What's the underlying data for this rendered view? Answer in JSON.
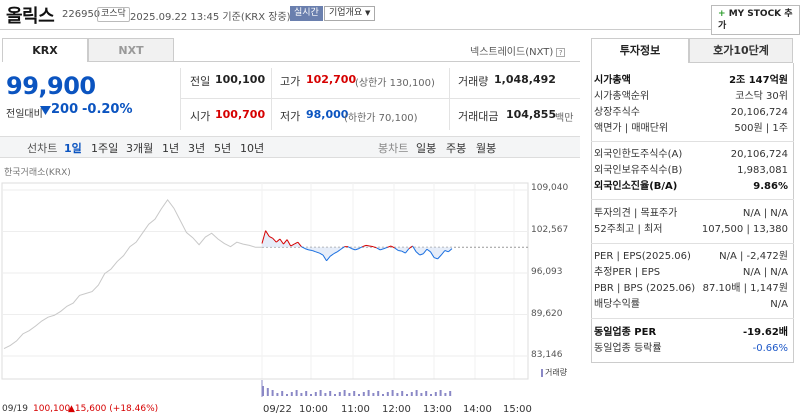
{
  "header": {
    "name": "올릭스",
    "code": "226950",
    "market": "코스닥",
    "timestamp": "2025.09.22 13:45 기준(KRX 장중)",
    "realtime": "실시간",
    "company_btn": "기업개요",
    "mystock_btn": "MY STOCK 추가",
    "mystock_plus": "+"
  },
  "exchange_tabs": [
    "KRX",
    "NXT"
  ],
  "nxt_link": "넥스트레이드(NXT)",
  "quote": {
    "price": "99,900",
    "change_label": "전일대비",
    "change_amount": "200",
    "change_pct": "-0.20%",
    "prev_close_label": "전일",
    "prev_close": "100,100",
    "open_label": "시가",
    "open": "100,700",
    "high_label": "고가",
    "high": "102,700",
    "upper_limit": "(상한가 130,100)",
    "low_label": "저가",
    "low": "98,000",
    "lower_limit": "(하한가 70,100)",
    "volume_label": "거래량",
    "volume": "1,048,492",
    "amount_label": "거래대금",
    "amount": "104,855",
    "amount_unit": "백만"
  },
  "periods": {
    "left": [
      "선차트",
      "1일",
      "1주일",
      "3개월",
      "1년",
      "3년",
      "5년",
      "10년"
    ],
    "selected": "1일",
    "right": [
      "봉차트",
      "일봉",
      "주봉",
      "월봉"
    ]
  },
  "chart_data": {
    "type": "line",
    "source": "한국거래소(KRX)",
    "y_ticks": [
      "109,040",
      "102,567",
      "96,093",
      "89,620",
      "83,146"
    ],
    "x_ticks": [
      "09/19",
      "09/22",
      "10:00",
      "11:00",
      "12:00",
      "13:00",
      "14:00",
      "15:00"
    ],
    "ylim": [
      83146,
      109040
    ],
    "prev_close": 100100,
    "volume_label": "거래량",
    "footer": {
      "date": "09/19",
      "price": "100,100",
      "change": "▲15,600 (+18.46%)"
    },
    "series": [
      {
        "values": [
          84300,
          84800,
          85500,
          86600,
          87100,
          87800,
          88600,
          89200,
          89500,
          90100,
          90900,
          91400,
          92600,
          92900,
          93200,
          94200,
          96000,
          96700,
          97900,
          98800,
          100200,
          100900,
          102300,
          103700,
          104500,
          106100,
          107500,
          106200,
          104300,
          102400,
          101600,
          100500,
          101700,
          102300,
          101400,
          100700,
          100200,
          100900,
          100600,
          100400,
          100100,
          100100
        ]
      },
      {
        "values": [
          100700,
          102700,
          101800,
          101500,
          100900,
          101400,
          100600,
          101300,
          100300,
          100600,
          100900,
          100200,
          99900,
          99700,
          99600,
          99400,
          99200,
          98900,
          98000,
          98700,
          99100,
          99400,
          99800,
          100200,
          100200,
          99900,
          99700,
          99900,
          100200,
          100400,
          100300,
          100200,
          100000,
          99700,
          99900,
          100100,
          100300,
          100000,
          99600,
          99500,
          99200,
          99900,
          100300,
          99400,
          98900,
          99100,
          99800,
          99400,
          98500,
          98300,
          98900,
          99600,
          99400,
          99900
        ]
      }
    ]
  },
  "info_tabs": [
    "투자정보",
    "호가10단계"
  ],
  "info": {
    "market_cap_label": "시가총액",
    "market_cap": "2조 147억원",
    "rank_label": "시가총액순위",
    "rank": "코스닥 30위",
    "shares_label": "상장주식수",
    "shares": "20,106,724",
    "par_label": "액면가 | 매매단위",
    "par": "500원 | 1주",
    "foreign_limit_label": "외국인한도주식수(A)",
    "foreign_limit": "20,106,724",
    "foreign_hold_label": "외국인보유주식수(B)",
    "foreign_hold": "1,983,081",
    "foreign_ratio_label": "외국인소진율(B/A)",
    "foreign_ratio": "9.86%",
    "opinion_label": "투자의견 | 목표주가",
    "opinion": "N/A | N/A",
    "w52_label": "52주최고 | 최저",
    "w52": "107,500 | 13,380",
    "per_label": "PER | EPS(2025.06)",
    "per": "N/A | -2,472원",
    "est_per_label": "추정PER | EPS",
    "est_per": "N/A | N/A",
    "pbr_label": "PBR | BPS (2025.06)",
    "pbr": "87.10배 | 1,147원",
    "div_label": "배당수익률",
    "div": "N/A",
    "industry_per_label": "동일업종 PER",
    "industry_per": "-19.62배",
    "industry_rate_label": "동일업종 등락률",
    "industry_rate": "-0.66%"
  },
  "colors": {
    "up": "#d60000",
    "down": "#0b54c0",
    "accent": "#6a7fae",
    "line_gray": "#c8c8c8",
    "volume": "#8a88c6"
  }
}
